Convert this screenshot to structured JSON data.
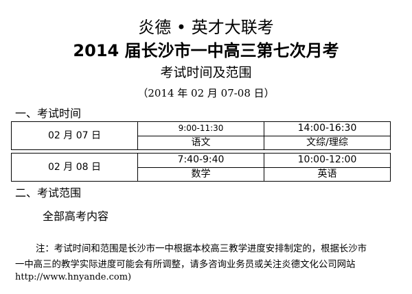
{
  "header": {
    "title": "炎德 • 英才大联考",
    "subtitle": "2014 届长沙市一中高三第七次月考",
    "doc_title": "考试时间及范围",
    "date": "（2014 年 02 月 07-08 日）"
  },
  "section1": {
    "heading": "一、考试时间",
    "rows": [
      {
        "date": "02 月 07 日",
        "sessions": [
          {
            "time": "9:00-11:30",
            "subject": "语文"
          },
          {
            "time": "14:00-16:30",
            "subject": "文综/理综"
          }
        ]
      },
      {
        "date": "02 月 08 日",
        "sessions": [
          {
            "time": "7:40-9:40",
            "subject": "数学"
          },
          {
            "time": "10:00-12:00",
            "subject": "英语"
          }
        ]
      }
    ]
  },
  "section2": {
    "heading": "二、考试范围",
    "content": "全部高考内容"
  },
  "note": {
    "line1": "注：考试时间和范围是长沙市一中根据本校高三教学进度安排制定的，根据长沙市",
    "line2": "一中高三的教学实际进度可能会有所调整，请多咨询业务员或关注炎德文化公司网站",
    "line3": "http://www.hnyande.com)"
  }
}
